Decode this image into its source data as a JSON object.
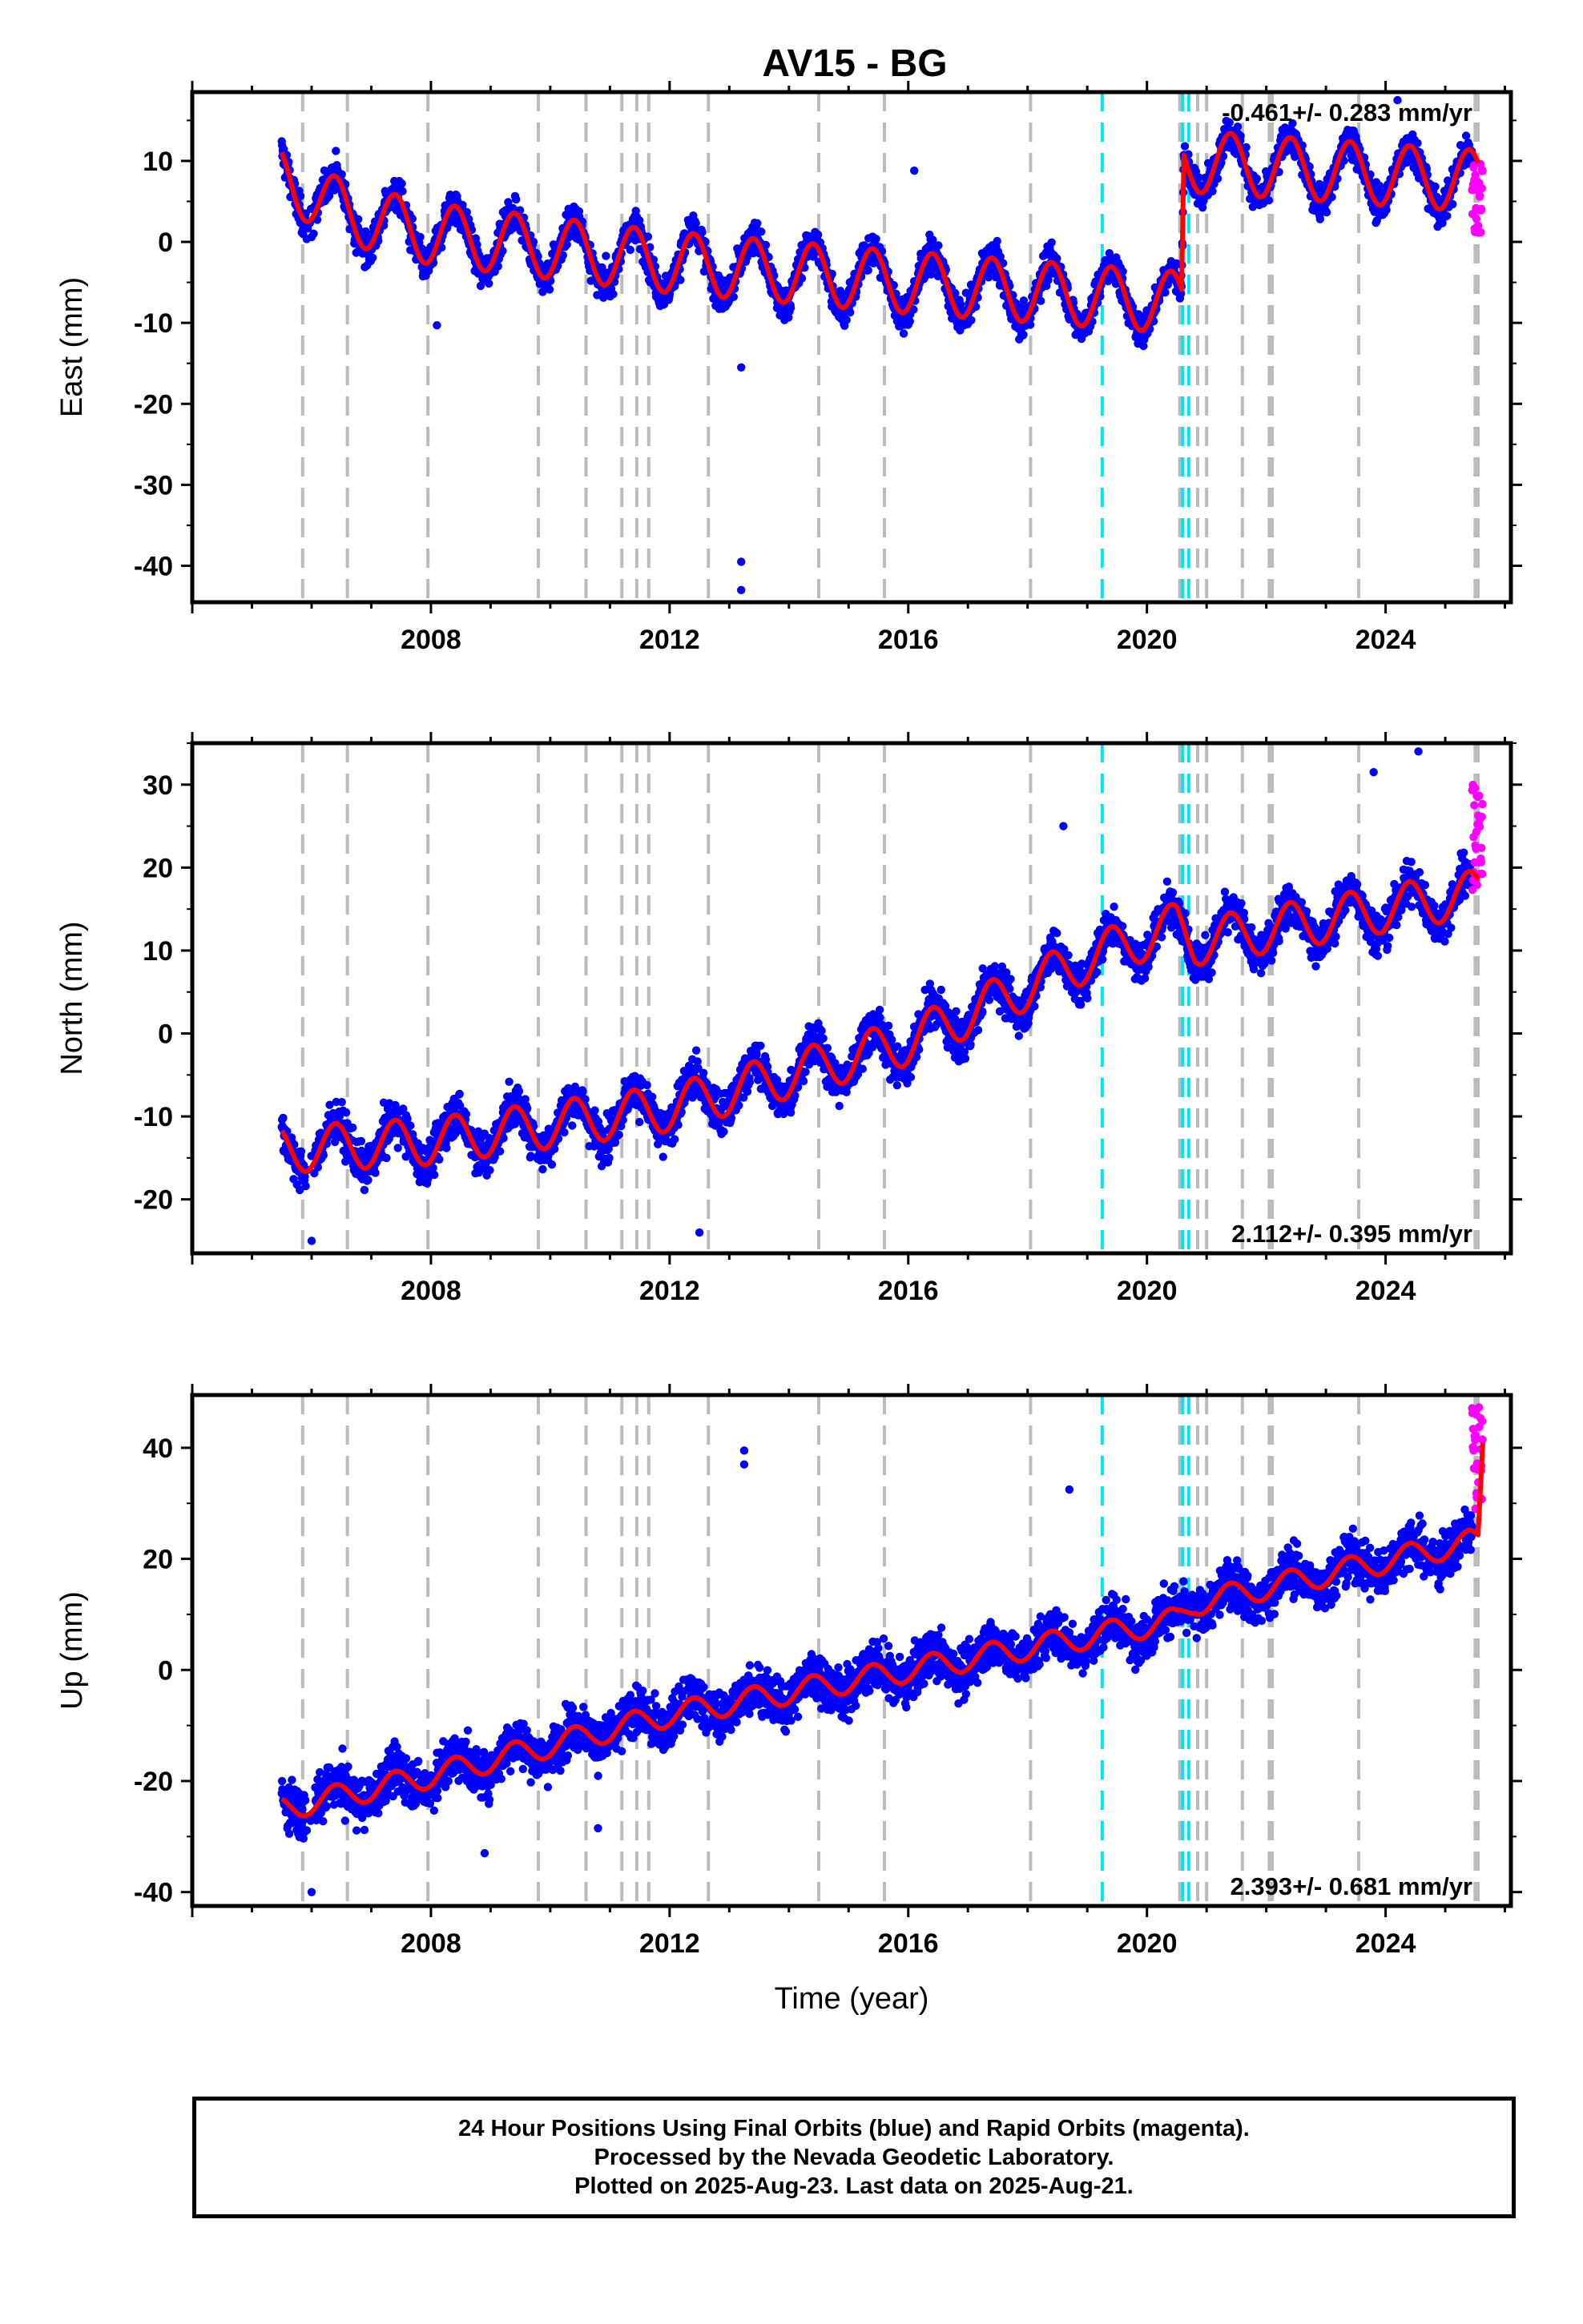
{
  "title": "AV15 - BG",
  "chart_data": {
    "type": "scatter",
    "x_ticks": [
      2008,
      2012,
      2016,
      2020,
      2024
    ],
    "xlim": [
      2004.0,
      2026.1
    ],
    "xlabel": "Time (year)",
    "first_data_year": 2005.5,
    "last_final_year": 2025.45,
    "last_data_year": 2025.63,
    "step_year": 2020.6,
    "gray_event_lines": [
      2005.85,
      2006.6,
      2007.95,
      2009.8,
      2010.6,
      2011.2,
      2011.45,
      2011.65,
      2012.65,
      2014.5,
      2015.6,
      2018.05,
      2020.55,
      2020.85,
      2021.0,
      2021.6,
      2022.05,
      2022.1,
      2023.55,
      2025.5,
      2025.55
    ],
    "cyan_event_lines": [
      2019.25,
      2020.6,
      2020.7
    ],
    "colors": {
      "final": "#0000ff",
      "rapid": "#ff00ff",
      "model": "#ff0000",
      "event_gray": "#bbbbbb",
      "event_cyan": "#00e5ee"
    },
    "panels": [
      {
        "name": "East",
        "ylabel": "East (mm)",
        "ylim": [
          -44.5,
          18.5
        ],
        "y_ticks": [
          10,
          0,
          -10,
          -20,
          -30,
          -40
        ],
        "rate_label": "-0.461+/- 0.283 mm/yr",
        "rate_position": "top-right",
        "trend_anchor": [
          [
            2005.5,
            8.0
          ],
          [
            2006.6,
            3.5
          ],
          [
            2008.0,
            1.0
          ],
          [
            2012.0,
            -2.5
          ],
          [
            2016.0,
            -5.0
          ],
          [
            2020.58,
            -7.5
          ],
          [
            2020.62,
            10.0
          ],
          [
            2025.6,
            7.5
          ]
        ],
        "seasonal_amplitude": 3.8,
        "scatter": 2.3,
        "outliers": [
          [
            2013.2,
            -39.5
          ],
          [
            2013.2,
            -43.0
          ],
          [
            2013.2,
            -15.5
          ],
          [
            2024.2,
            17.5
          ],
          [
            2016.1,
            8.8
          ],
          [
            2008.1,
            -10.3
          ]
        ],
        "rapid_range": [
          1.0,
          10.0
        ]
      },
      {
        "name": "North",
        "ylabel": "North (mm)",
        "ylim": [
          -26.5,
          35.0
        ],
        "y_ticks": [
          30,
          20,
          10,
          0,
          -10,
          -20
        ],
        "rate_label": "2.112+/- 0.395 mm/yr",
        "rate_position": "bottom-right",
        "trend_anchor": [
          [
            2005.5,
            -14.0
          ],
          [
            2008.0,
            -13.0
          ],
          [
            2012.0,
            -9.0
          ],
          [
            2016.0,
            -1.0
          ],
          [
            2019.0,
            9.0
          ],
          [
            2020.5,
            13.0
          ],
          [
            2020.8,
            11.0
          ],
          [
            2025.6,
            17.0
          ]
        ],
        "seasonal_amplitude": 2.8,
        "scatter": 2.8,
        "outliers": [
          [
            2024.55,
            34.0
          ],
          [
            2023.8,
            31.5
          ],
          [
            2018.6,
            25.0
          ],
          [
            2006.0,
            -25.0
          ],
          [
            2012.5,
            -24.0
          ]
        ],
        "rapid_range": [
          17.0,
          30.0
        ]
      },
      {
        "name": "Up",
        "ylabel": "Up (mm)",
        "ylim": [
          -42.5,
          49.5
        ],
        "y_ticks": [
          40,
          20,
          0,
          -20,
          -40
        ],
        "rate_label": "2.393+/- 0.681 mm/yr",
        "rate_position": "bottom-right",
        "trend_anchor": [
          [
            2005.5,
            -25.0
          ],
          [
            2008.0,
            -19.0
          ],
          [
            2012.0,
            -8.0
          ],
          [
            2016.0,
            0.0
          ],
          [
            2020.5,
            9.0
          ],
          [
            2020.8,
            12.0
          ],
          [
            2025.4,
            23.0
          ]
        ],
        "seasonal_amplitude": 2.2,
        "scatter": 4.8,
        "outliers": [
          [
            2013.25,
            39.5
          ],
          [
            2013.25,
            37.0
          ],
          [
            2018.7,
            32.5
          ],
          [
            2008.9,
            -33.0
          ],
          [
            2006.0,
            -40.0
          ],
          [
            2010.8,
            -28.5
          ]
        ],
        "rapid_range": [
          28.0,
          48.0
        ],
        "model_end_value": 41.0
      }
    ]
  },
  "footer": {
    "line1": "24 Hour Positions Using Final Orbits (blue) and Rapid Orbits (magenta).",
    "line2": "Processed by the Nevada Geodetic Laboratory.",
    "line3": "Plotted on 2025-Aug-23. Last data on 2025-Aug-21."
  }
}
